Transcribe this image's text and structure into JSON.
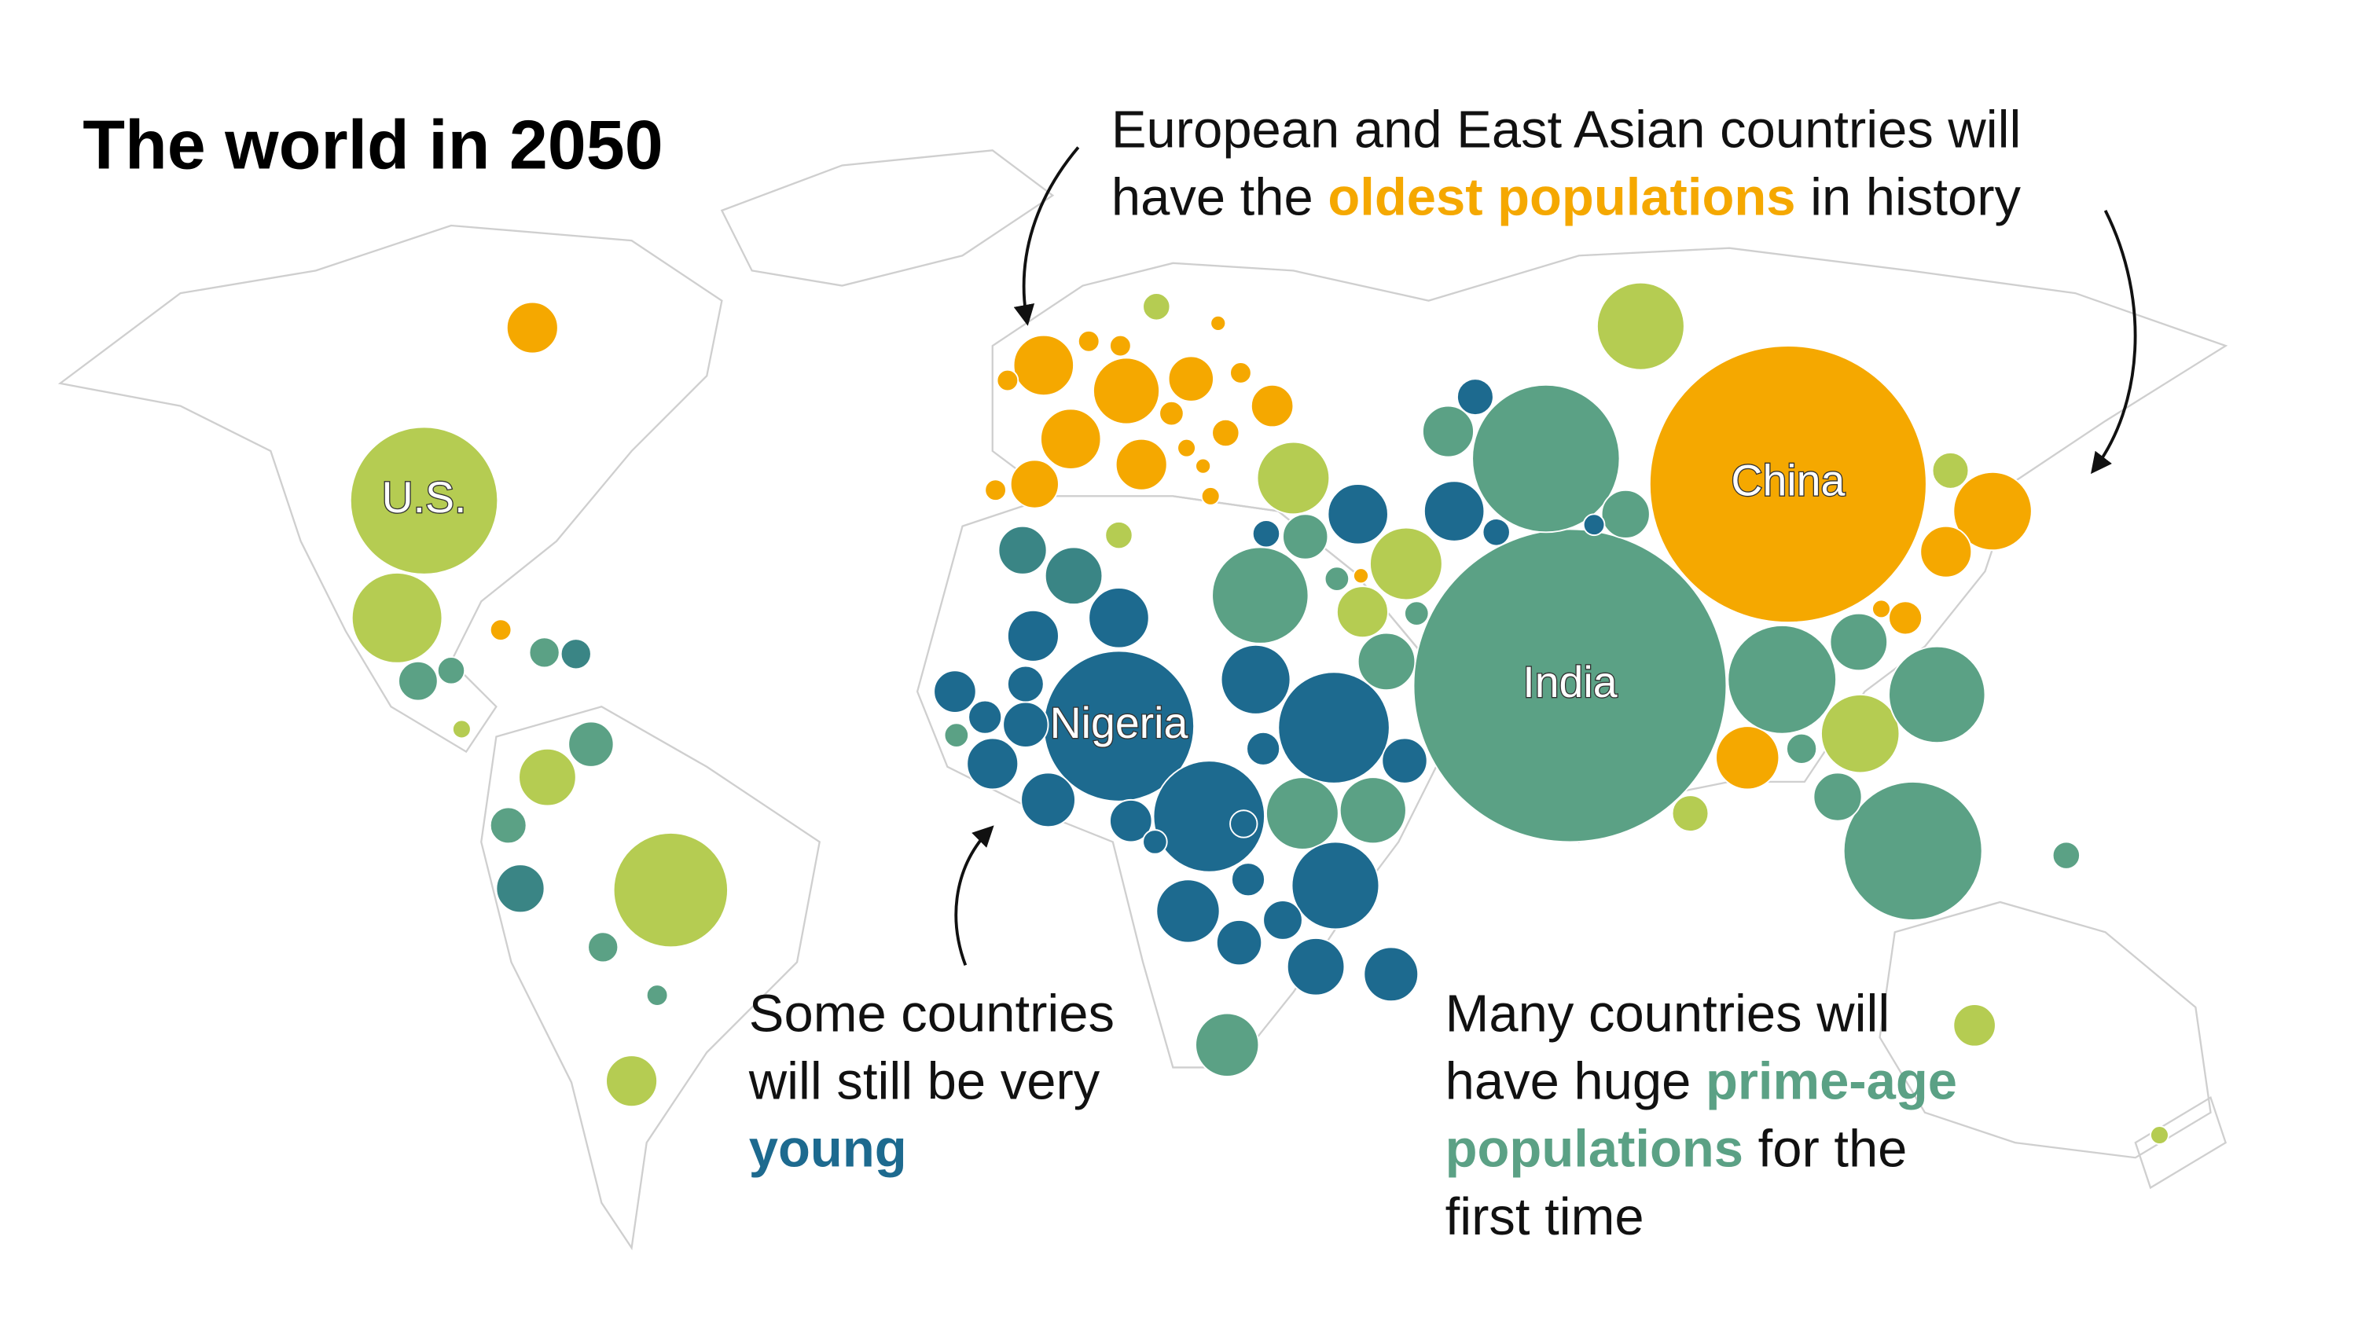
{
  "title": "The world in 2050",
  "annotations": [
    {
      "lines": [
        [
          "European and East Asian countries will"
        ],
        [
          "have the ",
          "oldest populations",
          " in history"
        ]
      ]
    },
    {
      "lines": [
        [
          "Some countries"
        ],
        [
          "will still be very"
        ],
        [
          "young"
        ]
      ]
    },
    {
      "lines": [
        [
          "Many countries will"
        ],
        [
          "have huge ",
          "prime-age"
        ],
        [
          "populations",
          " for the"
        ],
        [
          "first time"
        ]
      ]
    }
  ],
  "labels": [
    "U.S.",
    "China",
    "India",
    "Nigeria"
  ]
}
